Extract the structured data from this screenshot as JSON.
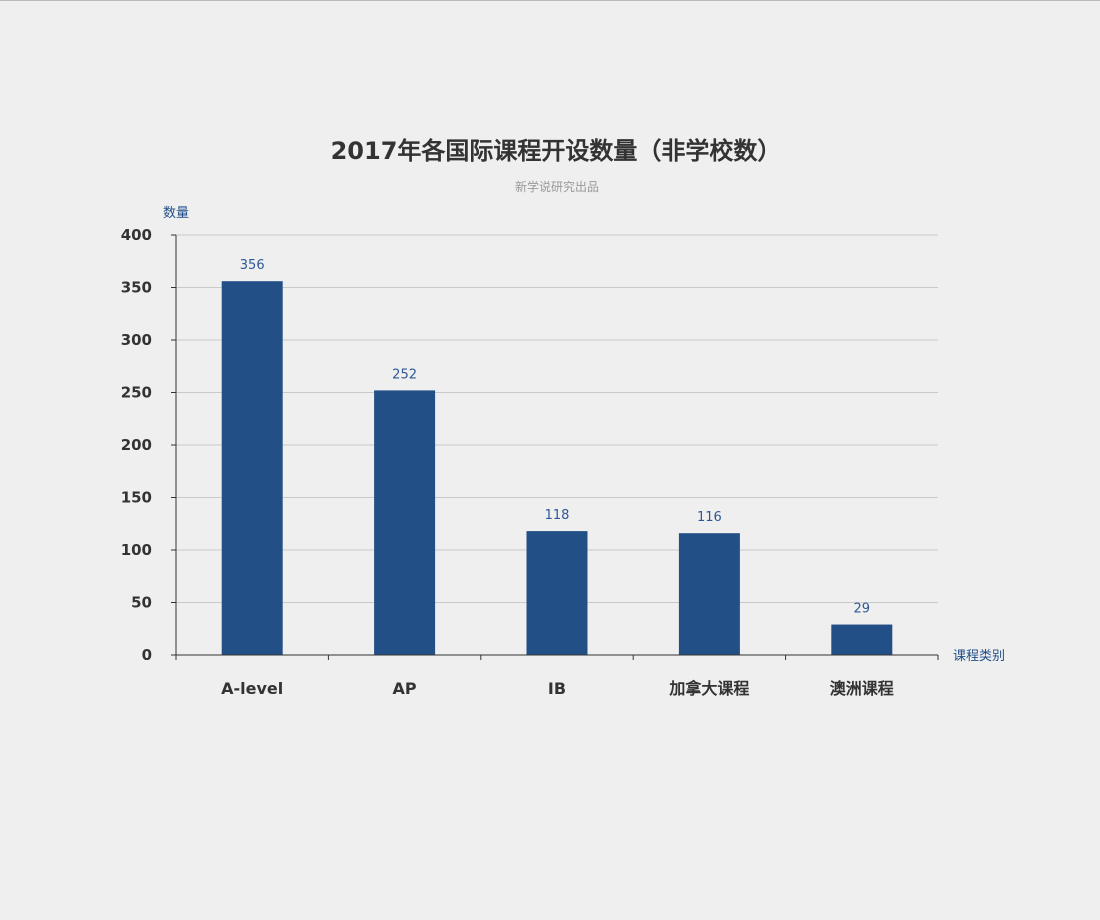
{
  "chart_data": {
    "type": "bar",
    "title": "2017年各国际课程开设数量（非学校数）",
    "subtitle": "新学说研究出品",
    "xlabel": "课程类别",
    "ylabel": "数量",
    "categories": [
      "A-level",
      "AP",
      "IB",
      "加拿大课程",
      "澳洲课程"
    ],
    "values": [
      356,
      252,
      118,
      116,
      29
    ],
    "ylim": [
      0,
      400
    ],
    "yticks": [
      0,
      50,
      100,
      150,
      200,
      250,
      300,
      350,
      400
    ],
    "grid": true,
    "legend": "none",
    "bar_color": "#224f86",
    "label_color": "#2c5896"
  }
}
